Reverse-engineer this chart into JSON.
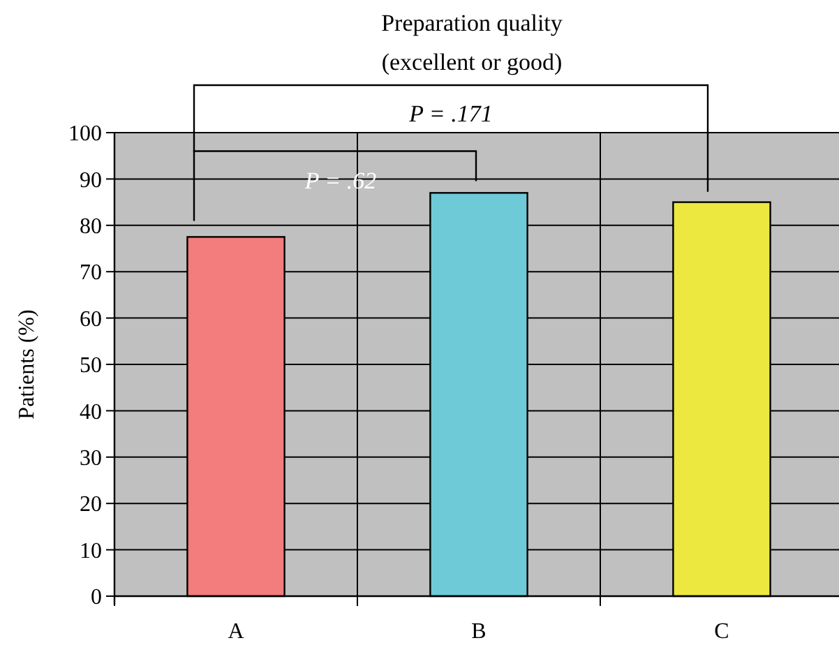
{
  "chart_data": {
    "type": "bar",
    "title": "Preparation quality",
    "subtitle": "(excellent or good)",
    "ylabel": "Patients (%)",
    "categories": [
      "A",
      "B",
      "C"
    ],
    "values": [
      77.5,
      87,
      85
    ],
    "colors": [
      "#f37c7c",
      "#6fcad8",
      "#ede83f"
    ],
    "ylim": [
      0,
      100
    ],
    "yticks": [
      0,
      10,
      20,
      30,
      40,
      50,
      60,
      70,
      80,
      90,
      100
    ],
    "grid": true,
    "annotations": [
      "P = .171",
      "P = .62"
    ]
  }
}
